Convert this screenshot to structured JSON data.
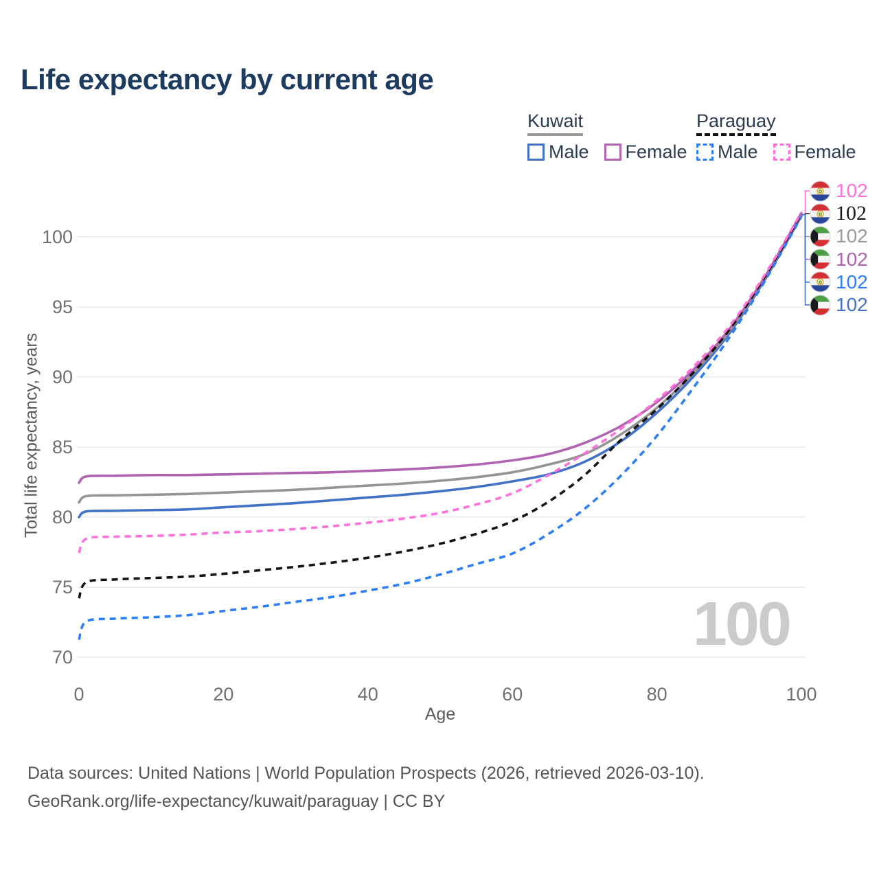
{
  "title": "Life expectancy by current age",
  "colors": {
    "title": "#1d3a5f",
    "axis_text": "#6f6f6f",
    "gridline": "#eaeaea",
    "watermark": "#cbcbcb"
  },
  "legend": {
    "groups": [
      {
        "name": "Kuwait",
        "underline_style": "solid",
        "underline_color": "#999999",
        "items": [
          {
            "label": "Male",
            "color": "#4371c6",
            "dashed": false
          },
          {
            "label": "Female",
            "color": "#af63b0",
            "dashed": false
          }
        ]
      },
      {
        "name": "Paraguay",
        "underline_style": "dashed",
        "underline_color": "#141414",
        "items": [
          {
            "label": "Male",
            "color": "#2e7ef5",
            "dashed": true
          },
          {
            "label": "Female",
            "color": "#ff70dd",
            "dashed": true
          }
        ]
      }
    ]
  },
  "chart_data": {
    "type": "line",
    "title": "Life expectancy by current age",
    "xlabel": "Age",
    "ylabel": "Total life expectancy, years",
    "xlim": [
      0,
      100
    ],
    "ylim": [
      69,
      103
    ],
    "xticks": [
      0,
      20,
      40,
      60,
      80,
      100
    ],
    "yticks": [
      70,
      75,
      80,
      85,
      90,
      95,
      100
    ],
    "grid": "horizontal",
    "legend_position": "top-right",
    "watermark": "100",
    "x": [
      0,
      1,
      5,
      10,
      15,
      20,
      25,
      30,
      35,
      40,
      45,
      50,
      55,
      60,
      65,
      70,
      75,
      80,
      85,
      90,
      95,
      100
    ],
    "series": [
      {
        "id": "kuwait-male",
        "name": "Kuwait Male",
        "country": "Kuwait",
        "sex": "Male",
        "color": "#4371c6",
        "dashed": false,
        "end_label": "102",
        "values": [
          80.0,
          80.4,
          80.45,
          80.5,
          80.55,
          80.7,
          80.85,
          81.0,
          81.2,
          81.4,
          81.6,
          81.85,
          82.15,
          82.55,
          83.05,
          83.95,
          85.4,
          87.45,
          90.0,
          93.1,
          97.0,
          101.5
        ]
      },
      {
        "id": "kuwait",
        "name": "Kuwait (both sexes)",
        "country": "Kuwait",
        "sex": "Both",
        "color": "#949494",
        "dashed": false,
        "end_label": "102",
        "values": [
          81.05,
          81.5,
          81.55,
          81.6,
          81.65,
          81.75,
          81.85,
          81.95,
          82.1,
          82.25,
          82.4,
          82.6,
          82.85,
          83.2,
          83.75,
          84.5,
          85.9,
          87.8,
          90.25,
          93.25,
          97.1,
          101.6
        ]
      },
      {
        "id": "kuwait-female",
        "name": "Kuwait Female",
        "country": "Kuwait",
        "sex": "Female",
        "color": "#af63b0",
        "dashed": false,
        "end_label": "102",
        "values": [
          82.45,
          82.9,
          82.95,
          83.0,
          83.0,
          83.05,
          83.1,
          83.15,
          83.2,
          83.3,
          83.4,
          83.55,
          83.75,
          84.05,
          84.5,
          85.3,
          86.5,
          88.2,
          90.5,
          93.4,
          97.2,
          101.7
        ]
      },
      {
        "id": "paraguay-male",
        "name": "Paraguay Male",
        "country": "Paraguay",
        "sex": "Male",
        "color": "#2e7ef5",
        "dashed": true,
        "end_label": "102",
        "values": [
          71.25,
          72.55,
          72.75,
          72.85,
          73.0,
          73.3,
          73.6,
          73.95,
          74.3,
          74.75,
          75.25,
          75.9,
          76.65,
          77.4,
          78.8,
          80.6,
          82.95,
          85.8,
          89.2,
          92.8,
          96.9,
          101.45
        ]
      },
      {
        "id": "paraguay",
        "name": "Paraguay (both sexes)",
        "country": "Paraguay",
        "sex": "Both",
        "color": "#141414",
        "dashed": true,
        "end_label": "102",
        "values": [
          74.2,
          75.35,
          75.55,
          75.65,
          75.75,
          75.95,
          76.2,
          76.45,
          76.75,
          77.1,
          77.55,
          78.1,
          78.8,
          79.7,
          81.1,
          83.0,
          85.5,
          87.7,
          90.3,
          93.35,
          97.2,
          101.65
        ]
      },
      {
        "id": "paraguay-female",
        "name": "Paraguay Female",
        "country": "Paraguay",
        "sex": "Female",
        "color": "#ff70dd",
        "dashed": true,
        "end_label": "102",
        "values": [
          77.45,
          78.45,
          78.6,
          78.65,
          78.75,
          78.9,
          79.0,
          79.15,
          79.35,
          79.6,
          79.9,
          80.3,
          80.9,
          81.7,
          83.0,
          84.55,
          86.3,
          88.35,
          90.7,
          93.6,
          97.35,
          101.75
        ]
      }
    ]
  },
  "right_labels": [
    {
      "id": "paraguay-female",
      "series": "Paraguay Female",
      "flag": "paraguay",
      "value": "102",
      "color": "#ff70dd",
      "serif": false
    },
    {
      "id": "paraguay",
      "series": "Paraguay (both sexes)",
      "flag": "paraguay",
      "value": "102",
      "color": "#1a1a1a",
      "serif": true
    },
    {
      "id": "kuwait",
      "series": "Kuwait (both sexes)",
      "flag": "kuwait",
      "value": "102",
      "color": "#9a9a9a",
      "serif": false
    },
    {
      "id": "kuwait-female",
      "series": "Kuwait Female",
      "flag": "kuwait",
      "value": "102",
      "color": "#af63b0",
      "serif": false
    },
    {
      "id": "paraguay-male",
      "series": "Paraguay Male",
      "flag": "paraguay",
      "value": "102",
      "color": "#2e7ef5",
      "serif": false
    },
    {
      "id": "kuwait-male",
      "series": "Kuwait Male",
      "flag": "kuwait",
      "value": "102",
      "color": "#4371c6",
      "serif": false
    }
  ],
  "footer": {
    "line1": "Data sources: United Nations | World Population Prospects (2026, retrieved 2026-03-10).",
    "line2": "GeoRank.org/life-expectancy/kuwait/paraguay | CC BY"
  }
}
